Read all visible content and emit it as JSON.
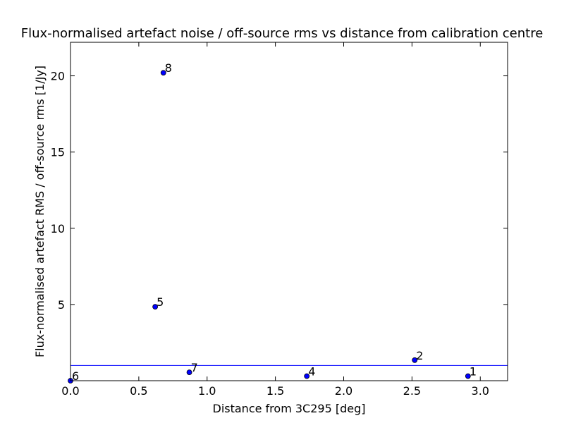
{
  "chart_data": {
    "type": "scatter",
    "title": "Flux-normalised artefact noise / off-source rms vs distance from calibration centre",
    "xlabel": "Distance from 3C295 [deg]",
    "ylabel": "Flux-normalised artefact RMS / off-source rms [1/Jy]",
    "xlim": [
      0.0,
      3.2
    ],
    "ylim": [
      0.0,
      22.2
    ],
    "xticks": [
      0.0,
      0.5,
      1.0,
      1.5,
      2.0,
      2.5,
      3.0
    ],
    "xtick_labels": [
      "0.0",
      "0.5",
      "1.0",
      "1.5",
      "2.0",
      "2.5",
      "3.0"
    ],
    "yticks": [
      5,
      10,
      15,
      20
    ],
    "ytick_labels": [
      "5",
      "10",
      "15",
      "20"
    ],
    "grid": false,
    "points": [
      {
        "label": "1",
        "x": 2.91,
        "y": 0.3
      },
      {
        "label": "2",
        "x": 2.52,
        "y": 1.35
      },
      {
        "label": "4",
        "x": 1.73,
        "y": 0.3
      },
      {
        "label": "5",
        "x": 0.62,
        "y": 4.85
      },
      {
        "label": "6",
        "x": 0.0,
        "y": 0.0
      },
      {
        "label": "7",
        "x": 0.87,
        "y": 0.55
      },
      {
        "label": "8",
        "x": 0.68,
        "y": 20.2
      }
    ],
    "hline": {
      "y": 1.0
    },
    "colors": {
      "point": "#0000ff",
      "line": "#0000ff",
      "axes": "#000000"
    }
  }
}
